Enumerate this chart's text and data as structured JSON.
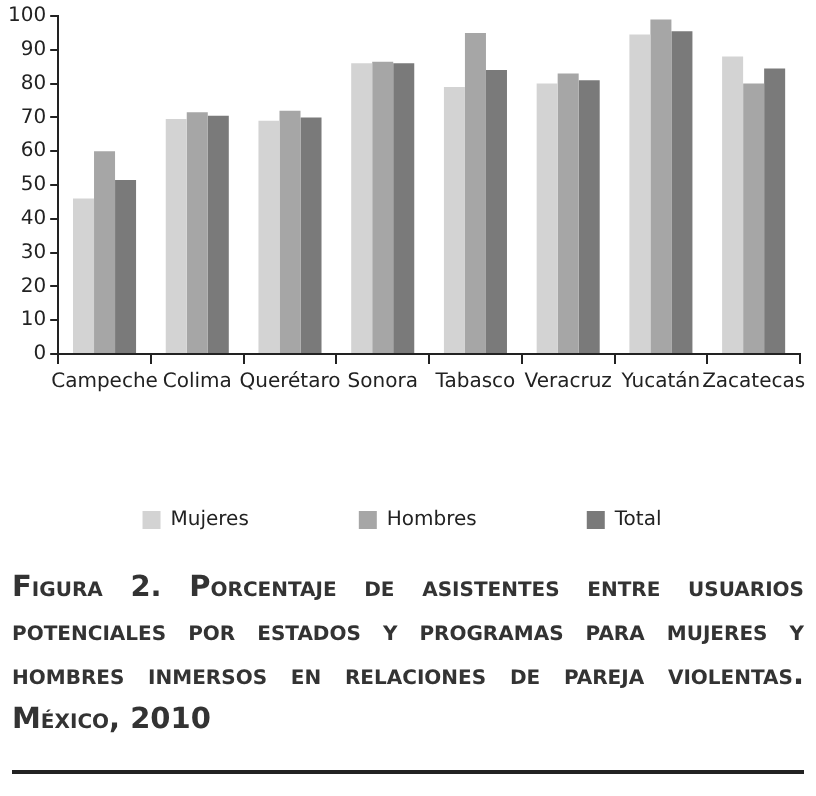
{
  "chart_data": {
    "type": "bar",
    "title": "Figura 2. Porcentaje de asistentes entre usuarios potenciales por estados y programas para mujeres y hombres inmersos en relaciones de pareja violentas. México, 2010",
    "categories": [
      "Campeche",
      "Colima",
      "Querétaro",
      "Sonora",
      "Tabasco",
      "Veracruz",
      "Yucatán",
      "Zacatecas"
    ],
    "series": [
      {
        "name": "Mujeres",
        "color": "#d3d3d3",
        "values": [
          46,
          69.5,
          69,
          86,
          79,
          80,
          94.5,
          88
        ]
      },
      {
        "name": "Hombres",
        "color": "#a6a6a6",
        "values": [
          60,
          71.5,
          72,
          86.5,
          95,
          83,
          99,
          80
        ]
      },
      {
        "name": "Total",
        "color": "#7a7a7a",
        "values": [
          51.5,
          70.5,
          70,
          86,
          84,
          81,
          95.5,
          84.5
        ]
      }
    ],
    "ylim": [
      0,
      100
    ],
    "yticks": [
      0,
      10,
      20,
      30,
      40,
      50,
      60,
      70,
      80,
      90,
      100
    ],
    "grid": false,
    "legend": "bottom"
  }
}
